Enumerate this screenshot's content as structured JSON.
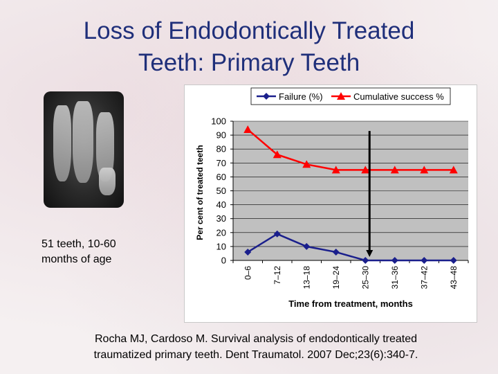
{
  "slide": {
    "title_line1": "Loss of Endodontically Treated",
    "title_line2": "Teeth: Primary Teeth",
    "caption_line1": "51 teeth, 10-60",
    "caption_line2": "months of age",
    "citation_line1": "Rocha MJ, Cardoso M. Survival analysis of endodontically treated",
    "citation_line2": "traumatized primary teeth.  Dent Traumatol. 2007 Dec;23(6):340-7."
  },
  "colors": {
    "title": "#1f2f7a",
    "failure": "#1a1f8c",
    "success": "#ff0000",
    "plot_bg": "#c0c0c0"
  },
  "chart_data": {
    "type": "line",
    "categories": [
      "0–6",
      "7–12",
      "13–18",
      "19–24",
      "25–30",
      "31–36",
      "37–42",
      "43–48"
    ],
    "series": [
      {
        "name": "Failure (%)",
        "values": [
          6,
          19,
          10,
          6,
          0,
          0,
          0,
          0
        ],
        "marker": "diamond"
      },
      {
        "name": "Cumulative success %",
        "values": [
          94,
          76,
          69,
          65,
          65,
          65,
          65,
          65
        ],
        "marker": "triangle"
      }
    ],
    "xlabel": "Time from treatment, months",
    "ylabel": "Per cent of treated teeth",
    "ylim": [
      0,
      100
    ],
    "yticks": [
      0,
      10,
      20,
      30,
      40,
      50,
      60,
      70,
      80,
      90,
      100
    ],
    "grid": true,
    "legend": "top",
    "annotation": {
      "type": "vertical-arrow",
      "category": "25–30",
      "from_value": 93,
      "to_value": 3
    }
  }
}
